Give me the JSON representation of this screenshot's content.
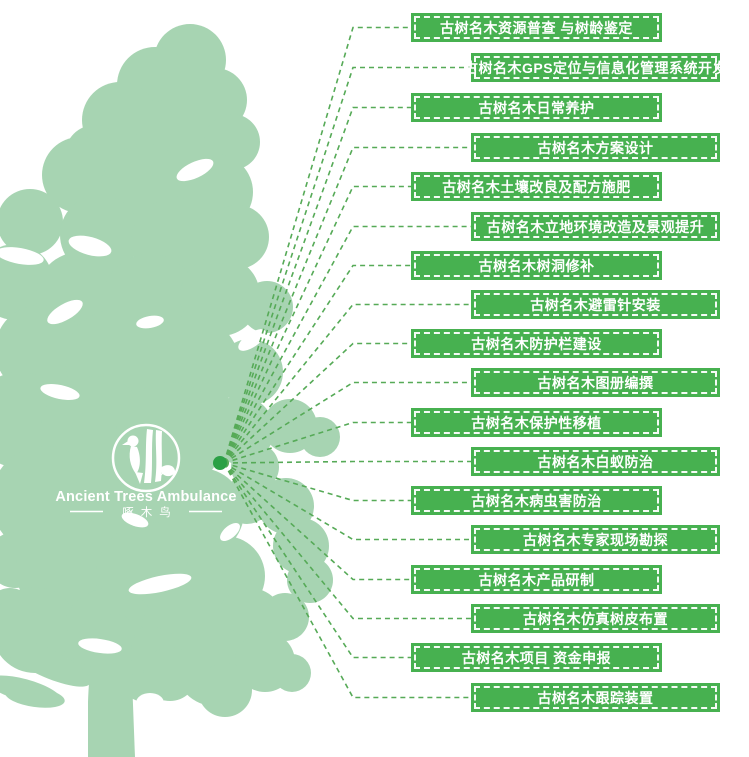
{
  "logo": {
    "title_en": "Ancient Trees Ambulance",
    "title_zh": "啄木鸟"
  },
  "colors": {
    "tree": "#a7d4b2",
    "box_fill": "#47b150",
    "connector_line": "#56aa57",
    "hub_dot": "#2ba045",
    "text": "#ffffff"
  },
  "services": [
    {
      "label": "古树名木资源普查 与树龄鉴定"
    },
    {
      "label": "古树名木GPS定位与信息化管理系统开发"
    },
    {
      "label": "古树名木日常养护"
    },
    {
      "label": "古树名木方案设计"
    },
    {
      "label": "古树名木土壤改良及配方施肥"
    },
    {
      "label": "古树名木立地环境改造及景观提升"
    },
    {
      "label": "古树名木树洞修补"
    },
    {
      "label": "古树名木避雷针安装"
    },
    {
      "label": "古树名木防护栏建设"
    },
    {
      "label": "古树名木图册编撰"
    },
    {
      "label": "古树名木保护性移植"
    },
    {
      "label": "古树名木白蚁防治"
    },
    {
      "label": "古树名木病虫害防治"
    },
    {
      "label": "古树名木专家现场勘探"
    },
    {
      "label": "古树名木产品研制"
    },
    {
      "label": "古树名木仿真树皮布置"
    },
    {
      "label": "古树名木项目 资金申报"
    },
    {
      "label": "古树名木跟踪装置"
    }
  ]
}
